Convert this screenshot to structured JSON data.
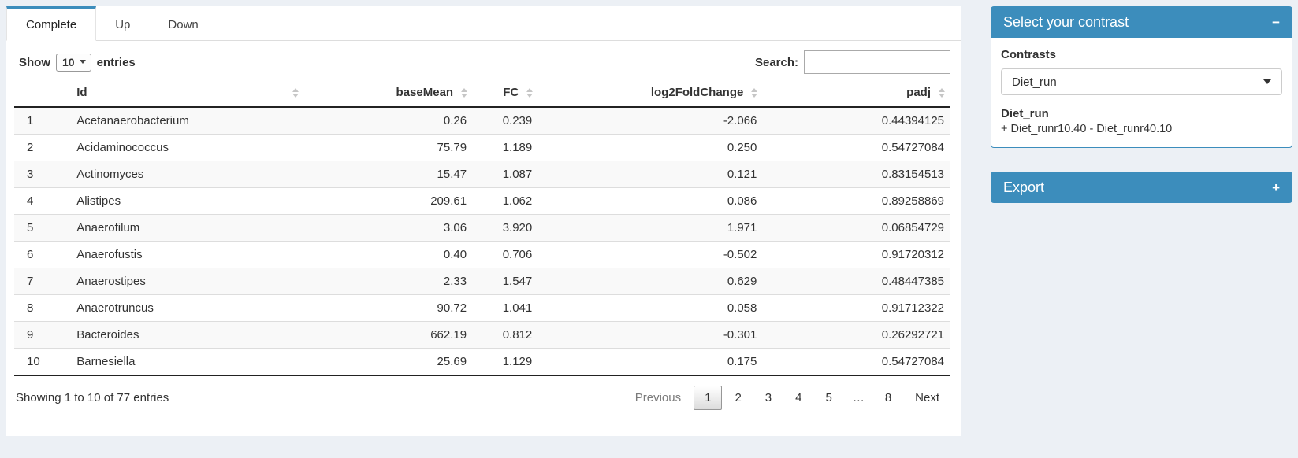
{
  "tabs": [
    {
      "label": "Complete",
      "active": true
    },
    {
      "label": "Up",
      "active": false
    },
    {
      "label": "Down",
      "active": false
    }
  ],
  "length_control": {
    "prefix": "Show",
    "value": "10",
    "suffix": "entries"
  },
  "search": {
    "label": "Search:",
    "value": ""
  },
  "table": {
    "columns": [
      {
        "key": "rownum",
        "label": "",
        "align": "left",
        "sortable": false
      },
      {
        "key": "id",
        "label": "Id",
        "align": "left",
        "sortable": true
      },
      {
        "key": "basemean",
        "label": "baseMean",
        "align": "right",
        "sortable": true
      },
      {
        "key": "fc",
        "label": "FC",
        "align": "right",
        "sortable": true
      },
      {
        "key": "log2foldchange",
        "label": "log2FoldChange",
        "align": "right",
        "sortable": true
      },
      {
        "key": "padj",
        "label": "padj",
        "align": "right",
        "sortable": true
      }
    ],
    "rows": [
      [
        "1",
        "Acetanaerobacterium",
        "0.26",
        "0.239",
        "-2.066",
        "0.44394125"
      ],
      [
        "2",
        "Acidaminococcus",
        "75.79",
        "1.189",
        "0.250",
        "0.54727084"
      ],
      [
        "3",
        "Actinomyces",
        "15.47",
        "1.087",
        "0.121",
        "0.83154513"
      ],
      [
        "4",
        "Alistipes",
        "209.61",
        "1.062",
        "0.086",
        "0.89258869"
      ],
      [
        "5",
        "Anaerofilum",
        "3.06",
        "3.920",
        "1.971",
        "0.06854729"
      ],
      [
        "6",
        "Anaerofustis",
        "0.40",
        "0.706",
        "-0.502",
        "0.91720312"
      ],
      [
        "7",
        "Anaerostipes",
        "2.33",
        "1.547",
        "0.629",
        "0.48447385"
      ],
      [
        "8",
        "Anaerotruncus",
        "90.72",
        "1.041",
        "0.058",
        "0.91712322"
      ],
      [
        "9",
        "Bacteroides",
        "662.19",
        "0.812",
        "-0.301",
        "0.26292721"
      ],
      [
        "10",
        "Barnesiella",
        "25.69",
        "1.129",
        "0.175",
        "0.54727084"
      ]
    ]
  },
  "info": "Showing 1 to 10 of 77 entries",
  "pagination": {
    "previous": "Previous",
    "pages": [
      "1",
      "2",
      "3",
      "4",
      "5",
      "…",
      "8"
    ],
    "active_page": "1",
    "next": "Next"
  },
  "sidebar": {
    "contrast_panel": {
      "title": "Select your contrast",
      "collapse_icon": "−",
      "label": "Contrasts",
      "select_value": "Diet_run",
      "contrast_name": "Diet_run",
      "contrast_formula": "+ Diet_runr10.40 - Diet_runr40.10"
    },
    "export_panel": {
      "title": "Export",
      "collapse_icon": "+"
    }
  },
  "colors": {
    "accent": "#3c8dbc",
    "page_bg": "#ecf0f5",
    "stripe": "#f9f9f9"
  }
}
